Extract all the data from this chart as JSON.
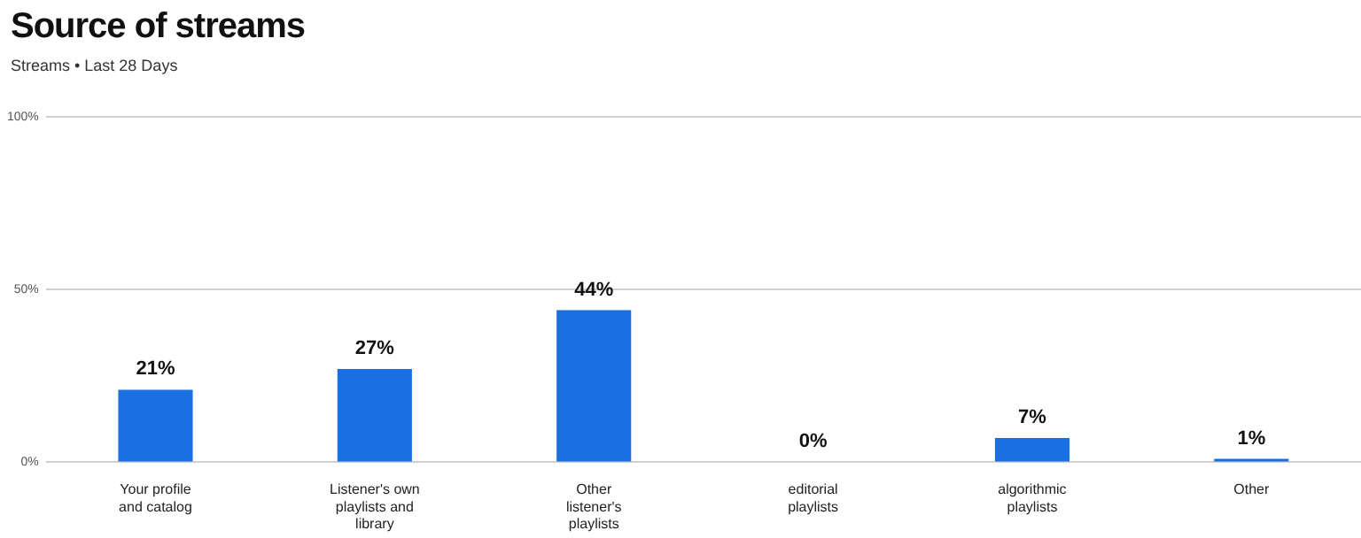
{
  "chart_data": {
    "type": "bar",
    "title": "Source of streams",
    "subtitle": "Streams • Last 28 Days",
    "categories": [
      "Your profile and catalog",
      "Listener's own playlists and library",
      "Other listener's playlists",
      "editorial playlists",
      "algorithmic playlists",
      "Other"
    ],
    "values": [
      21,
      27,
      44,
      0,
      7,
      1
    ],
    "value_labels": [
      "21%",
      "27%",
      "44%",
      "0%",
      "7%",
      "1%"
    ],
    "color": "#1a6fe0",
    "ylim": [
      0,
      100
    ],
    "yticks": [
      {
        "value": 0,
        "label": "0%"
      },
      {
        "value": 50,
        "label": "50%"
      },
      {
        "value": 100,
        "label": "100%"
      }
    ],
    "grid": "y",
    "legend": false
  }
}
